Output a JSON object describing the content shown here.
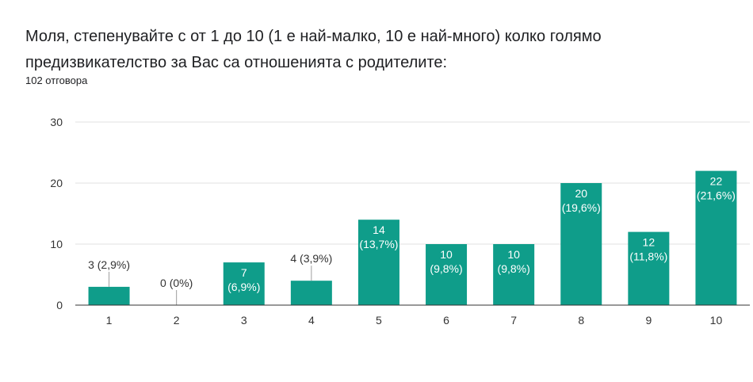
{
  "question": {
    "title": "Моля, степенувайте с от 1 до 10 (1 е най-малко, 10 е най-много) колко голямо предизвикателство за Вас са отношенията с родителите:",
    "responses": "102 отговора"
  },
  "colors": {
    "bar": "#0f9d8a",
    "grid": "#e0e0e0",
    "axis": "#333333",
    "label_outside": "#333333",
    "label_inside": "#ffffff"
  },
  "chart_data": {
    "type": "bar",
    "categories": [
      "1",
      "2",
      "3",
      "4",
      "5",
      "6",
      "7",
      "8",
      "9",
      "10"
    ],
    "values": [
      3,
      0,
      7,
      4,
      14,
      10,
      10,
      20,
      12,
      22
    ],
    "labels": [
      "3 (2,9%)",
      "0 (0%)",
      "7 (6,9%)",
      "4 (3,9%)",
      "14 (13,7%)",
      "10 (9,8%)",
      "10 (9,8%)",
      "20 (19,6%)",
      "12 (11,8%)",
      "22 (21,6%)"
    ],
    "ylim": [
      0,
      30
    ],
    "yticks": [
      0,
      10,
      20,
      30
    ],
    "grid": true,
    "legend": "none"
  }
}
